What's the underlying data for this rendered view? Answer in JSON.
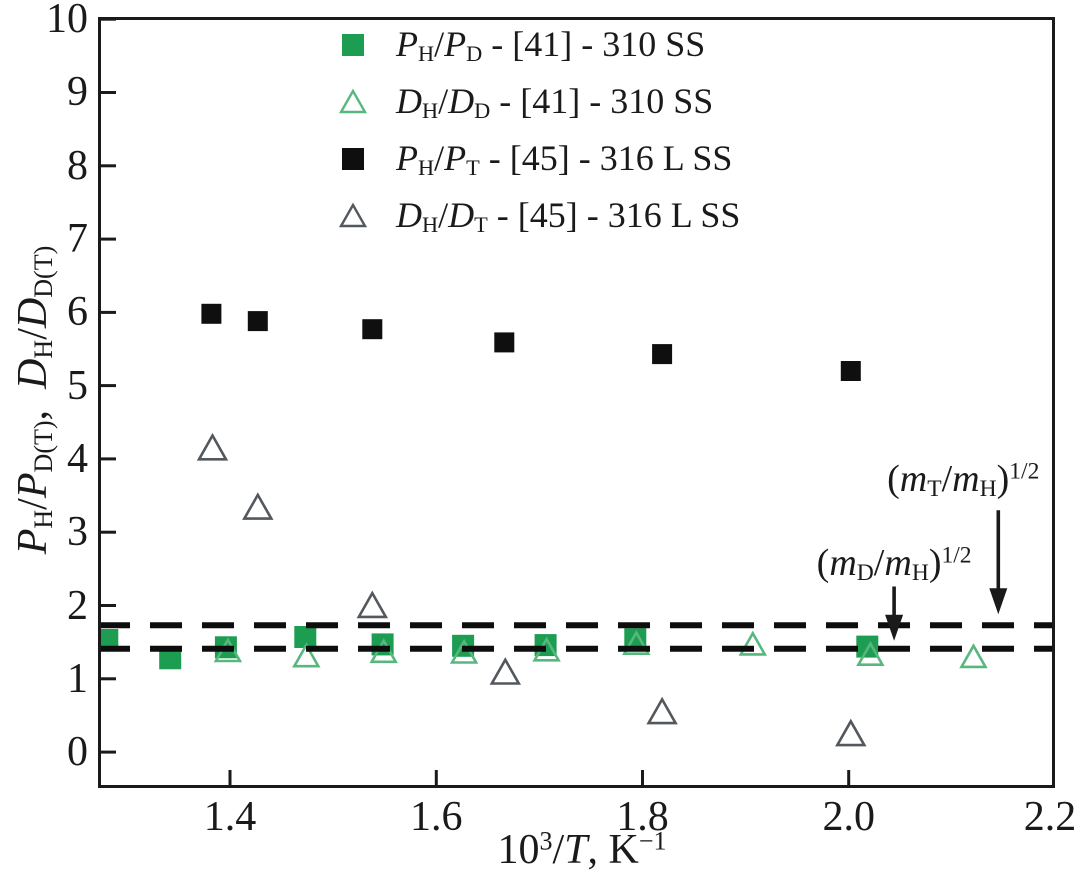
{
  "figure": {
    "background": "#ffffff",
    "frame_color": "#1a1a1a"
  },
  "axes": {
    "x_label_parts": [
      {
        "t": "10",
        "k": "n"
      },
      {
        "t": "3",
        "k": "sup"
      },
      {
        "t": "/",
        "k": "n"
      },
      {
        "t": "T",
        "k": "i"
      },
      {
        "t": ", K",
        "k": "n"
      },
      {
        "t": "−1",
        "k": "sup"
      }
    ],
    "y_label_parts": [
      {
        "t": "P",
        "k": "i"
      },
      {
        "t": "H",
        "k": "sub"
      },
      {
        "t": "/",
        "k": "n"
      },
      {
        "t": "P",
        "k": "i"
      },
      {
        "t": "D(T)",
        "k": "sub"
      },
      {
        "t": ",  ",
        "k": "n"
      },
      {
        "t": "D",
        "k": "i"
      },
      {
        "t": "H",
        "k": "sub"
      },
      {
        "t": "/",
        "k": "n"
      },
      {
        "t": "D",
        "k": "i"
      },
      {
        "t": "D(T)",
        "k": "sub"
      }
    ],
    "x_ticks": [
      {
        "v": 1.4,
        "label": "1.4"
      },
      {
        "v": 1.6,
        "label": "1.6"
      },
      {
        "v": 1.8,
        "label": "1.8"
      },
      {
        "v": 2.0,
        "label": "2.0"
      },
      {
        "v": 2.2,
        "label": "2.2"
      }
    ],
    "y_ticks": [
      {
        "v": 0,
        "label": "0"
      },
      {
        "v": 1,
        "label": "1"
      },
      {
        "v": 2,
        "label": "2"
      },
      {
        "v": 3,
        "label": "3"
      },
      {
        "v": 4,
        "label": "4"
      },
      {
        "v": 5,
        "label": "5"
      },
      {
        "v": 6,
        "label": "6"
      },
      {
        "v": 7,
        "label": "7"
      },
      {
        "v": 8,
        "label": "8"
      },
      {
        "v": 9,
        "label": "9"
      },
      {
        "v": 10,
        "label": "10"
      }
    ]
  },
  "legend": {
    "items": [
      {
        "marker": "square-filled",
        "color": "#1d9d51",
        "stroke": "#1d9d51",
        "label_parts": [
          {
            "t": "P",
            "k": "i"
          },
          {
            "t": "H",
            "k": "sub"
          },
          {
            "t": "/",
            "k": "n"
          },
          {
            "t": "P",
            "k": "i"
          },
          {
            "t": "D",
            "k": "sub"
          },
          {
            "t": " - [41] - 310 SS",
            "k": "n"
          }
        ]
      },
      {
        "marker": "triangle-open",
        "color": "none",
        "stroke": "#58b77e",
        "label_parts": [
          {
            "t": "D",
            "k": "i"
          },
          {
            "t": "H",
            "k": "sub"
          },
          {
            "t": "/",
            "k": "n"
          },
          {
            "t": "D",
            "k": "i"
          },
          {
            "t": "D",
            "k": "sub"
          },
          {
            "t": " - [41] - 310 SS",
            "k": "n"
          }
        ]
      },
      {
        "marker": "square-filled",
        "color": "#0f0f0f",
        "stroke": "#0f0f0f",
        "label_parts": [
          {
            "t": "P",
            "k": "i"
          },
          {
            "t": "H",
            "k": "sub"
          },
          {
            "t": "/",
            "k": "n"
          },
          {
            "t": "P",
            "k": "i"
          },
          {
            "t": "T",
            "k": "sub"
          },
          {
            "t": " - [45] - 316 L SS",
            "k": "n"
          }
        ]
      },
      {
        "marker": "triangle-open",
        "color": "none",
        "stroke": "#53585e",
        "label_parts": [
          {
            "t": "D",
            "k": "i"
          },
          {
            "t": "H",
            "k": "sub"
          },
          {
            "t": "/",
            "k": "n"
          },
          {
            "t": "D",
            "k": "i"
          },
          {
            "t": "T",
            "k": "sub"
          },
          {
            "t": " - [45] - 316 L SS",
            "k": "n"
          }
        ]
      }
    ]
  },
  "chart_data": {
    "type": "scatter",
    "title": "",
    "xlabel": "10^3/T, K^-1",
    "ylabel": "P_H/P_D(T), D_H/D_D(T)",
    "xlim": [
      1.272,
      2.2
    ],
    "ylim": [
      -0.49,
      10.03
    ],
    "grid": false,
    "legend_position": "top-center-inside",
    "series": [
      {
        "name": "P_H/P_D - [41] - 310 SS",
        "marker": "square",
        "fill": "#1d9d51",
        "stroke": "#1d9d51",
        "size": 21,
        "points": [
          [
            1.281,
            1.53
          ],
          [
            1.342,
            1.28
          ],
          [
            1.396,
            1.43
          ],
          [
            1.473,
            1.57
          ],
          [
            1.548,
            1.47
          ],
          [
            1.626,
            1.45
          ],
          [
            1.706,
            1.46
          ],
          [
            1.793,
            1.54
          ],
          [
            2.018,
            1.44
          ]
        ]
      },
      {
        "name": "D_H/D_D - [41] - 310 SS",
        "marker": "triangle",
        "fill": "none",
        "stroke": "#58b77e",
        "size": 24,
        "points": [
          [
            1.398,
            1.38
          ],
          [
            1.474,
            1.31
          ],
          [
            1.549,
            1.37
          ],
          [
            1.627,
            1.36
          ],
          [
            1.707,
            1.39
          ],
          [
            1.794,
            1.48
          ],
          [
            1.907,
            1.47
          ],
          [
            2.021,
            1.33
          ],
          [
            2.121,
            1.3
          ]
        ]
      },
      {
        "name": "P_H/P_T - [45] - 316 L SS",
        "marker": "square",
        "fill": "#0f0f0f",
        "stroke": "#0f0f0f",
        "size": 19,
        "points": [
          [
            1.382,
            5.98
          ],
          [
            1.427,
            5.88
          ],
          [
            1.538,
            5.77
          ],
          [
            1.666,
            5.59
          ],
          [
            1.819,
            5.43
          ],
          [
            2.002,
            5.2
          ]
        ]
      },
      {
        "name": "D_H/D_T - [45] - 316 L SS",
        "marker": "triangle",
        "fill": "none",
        "stroke": "#53585e",
        "size": 27,
        "points": [
          [
            1.383,
            4.15
          ],
          [
            1.427,
            3.34
          ],
          [
            1.538,
            2.0
          ],
          [
            1.667,
            1.09
          ],
          [
            1.819,
            0.55
          ],
          [
            2.002,
            0.25
          ]
        ]
      }
    ],
    "reference_lines": [
      {
        "y": 1.41,
        "style": "dashed",
        "color": "#0d0d0d",
        "meaning": "(m_D/m_H)^1/2"
      },
      {
        "y": 1.73,
        "style": "dashed",
        "color": "#0d0d0d",
        "meaning": "(m_T/m_H)^1/2"
      }
    ],
    "annotations": [
      {
        "id": "mD",
        "label_parts": [
          {
            "t": "(",
            "k": "n"
          },
          {
            "t": "m",
            "k": "i"
          },
          {
            "t": "D",
            "k": "sub"
          },
          {
            "t": "/",
            "k": "n"
          },
          {
            "t": "m",
            "k": "i"
          },
          {
            "t": "H",
            "k": "sub"
          },
          {
            "t": ")",
            "k": "n"
          },
          {
            "t": "1/2",
            "k": "sup"
          }
        ],
        "label_x": 2.044,
        "label_y": 2.56,
        "arrow_x": 2.044,
        "arrow_y_from": 2.26,
        "arrow_y_to": 1.52
      },
      {
        "id": "mT",
        "label_parts": [
          {
            "t": "(",
            "k": "n"
          },
          {
            "t": "m",
            "k": "i"
          },
          {
            "t": "T",
            "k": "sub"
          },
          {
            "t": "/",
            "k": "n"
          },
          {
            "t": "m",
            "k": "i"
          },
          {
            "t": "H",
            "k": "sub"
          },
          {
            "t": ")",
            "k": "n"
          },
          {
            "t": "1/2",
            "k": "sup"
          }
        ],
        "label_x": 2.111,
        "label_y": 3.71,
        "arrow_x": 2.145,
        "arrow_y_from": 3.3,
        "arrow_y_to": 1.88
      }
    ]
  }
}
